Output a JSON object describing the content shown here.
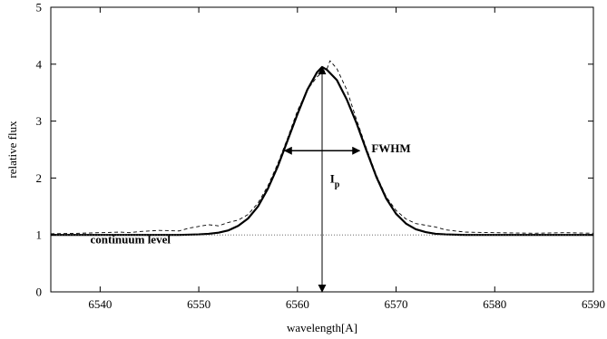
{
  "chart_data": {
    "type": "line",
    "title": "",
    "xlabel": "wavelength[A]",
    "ylabel": "relative flux",
    "xlim": [
      6535,
      6590
    ],
    "ylim": [
      0,
      5
    ],
    "xticks": [
      6540,
      6550,
      6560,
      6570,
      6580,
      6590
    ],
    "yticks": [
      0,
      1,
      2,
      3,
      4,
      5
    ],
    "grid": false,
    "legend": "none",
    "series": [
      {
        "style": "solid",
        "x": [
          6535,
          6540,
          6545,
          6548,
          6550,
          6551,
          6552,
          6553,
          6554,
          6555,
          6556,
          6557,
          6558,
          6559,
          6560,
          6561,
          6562,
          6562.5,
          6563,
          6564,
          6565,
          6566,
          6567,
          6568,
          6569,
          6570,
          6571,
          6572,
          6573,
          6574,
          6575,
          6577,
          6580,
          6585,
          6590
        ],
        "values": [
          1.0,
          1.0,
          1.0,
          1.0,
          1.01,
          1.02,
          1.04,
          1.08,
          1.16,
          1.29,
          1.5,
          1.81,
          2.2,
          2.66,
          3.12,
          3.55,
          3.86,
          3.95,
          3.9,
          3.72,
          3.38,
          2.96,
          2.48,
          2.02,
          1.64,
          1.37,
          1.2,
          1.1,
          1.05,
          1.02,
          1.01,
          1.0,
          1.0,
          1.0,
          1.0
        ]
      },
      {
        "style": "dashed",
        "x": [
          6535,
          6538,
          6540,
          6542,
          6543,
          6544,
          6546,
          6548,
          6549,
          6550,
          6551,
          6552,
          6553,
          6554,
          6555,
          6556,
          6557,
          6558,
          6559,
          6560,
          6561,
          6562,
          6563,
          6563.3,
          6564,
          6565,
          6566,
          6567,
          6568,
          6569,
          6570,
          6571,
          6572,
          6573,
          6574,
          6575,
          6577,
          6580,
          6584,
          6587,
          6590
        ],
        "values": [
          1.02,
          1.03,
          1.04,
          1.05,
          1.04,
          1.06,
          1.08,
          1.07,
          1.12,
          1.15,
          1.18,
          1.16,
          1.22,
          1.26,
          1.36,
          1.56,
          1.86,
          2.25,
          2.7,
          3.18,
          3.55,
          3.78,
          3.92,
          4.06,
          3.92,
          3.55,
          3.02,
          2.52,
          2.05,
          1.67,
          1.43,
          1.28,
          1.2,
          1.17,
          1.14,
          1.09,
          1.05,
          1.04,
          1.03,
          1.04,
          1.03
        ]
      },
      {
        "style": "dotted",
        "x": [
          6535,
          6590
        ],
        "values": [
          1.0,
          1.0
        ]
      }
    ],
    "annotations": [
      {
        "text": "FWHM",
        "x": 6567.5,
        "y": 2.45
      },
      {
        "text": "I",
        "sub": "p",
        "x": 6563.3,
        "y": 1.92
      },
      {
        "text": "continuum level",
        "x": 6539,
        "y": 0.85
      }
    ],
    "fwhm_arrow": {
      "x1": 6558.7,
      "x2": 6566.3,
      "y": 2.48
    },
    "ip_arrow": {
      "x": 6562.5,
      "y1": 0,
      "y2": 3.95
    }
  }
}
